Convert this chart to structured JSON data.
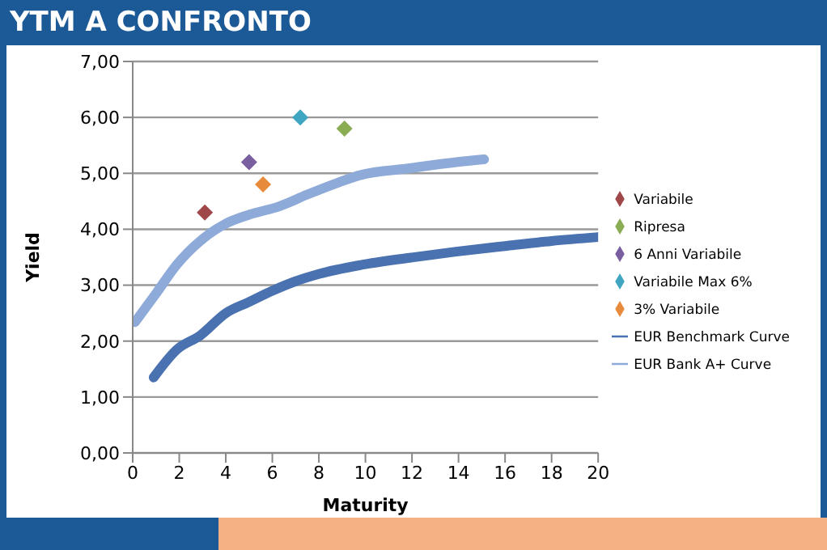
{
  "chart_data": {
    "type": "scatter",
    "title": "YTM A CONFRONTO",
    "xlabel": "Maturity",
    "ylabel": "Yield",
    "xlim": [
      0,
      20
    ],
    "xticks": [
      0,
      2,
      4,
      6,
      8,
      10,
      12,
      14,
      16,
      18,
      20
    ],
    "ylim": [
      0,
      7
    ],
    "yticks": [
      {
        "value": 0,
        "label": "0,00"
      },
      {
        "value": 1,
        "label": "1,00"
      },
      {
        "value": 2,
        "label": "2,00"
      },
      {
        "value": 3,
        "label": "3,00"
      },
      {
        "value": 4,
        "label": "4,00"
      },
      {
        "value": 5,
        "label": "5,00"
      },
      {
        "value": 6,
        "label": "6,00"
      },
      {
        "value": 7,
        "label": "7,00"
      }
    ],
    "grid": "y",
    "legend": "right",
    "marker": "diamond",
    "series": [
      {
        "name": "Variabile",
        "color": "#a0474a",
        "x": [
          3.1
        ],
        "values": [
          4.3
        ]
      },
      {
        "name": "Ripresa",
        "color": "#8aac52",
        "x": [
          9.1
        ],
        "values": [
          5.8
        ]
      },
      {
        "name": "6 Anni Variabile",
        "color": "#7a5fa0",
        "x": [
          5.0
        ],
        "values": [
          5.2
        ]
      },
      {
        "name": "Variabile Max 6%",
        "color": "#3fa5c0",
        "x": [
          7.2
        ],
        "values": [
          6.0
        ]
      },
      {
        "name": "3% Variabile",
        "color": "#e88a3c",
        "x": [
          5.6
        ],
        "values": [
          4.8
        ]
      },
      {
        "name": "EUR Benchmark Curve",
        "type": "line",
        "marker": "none",
        "color": "#4a72b0",
        "x": [
          0.9,
          1.9,
          2.9,
          4.0,
          5.0,
          6.0,
          7.0,
          8.0,
          9.8,
          11.9,
          13.9,
          16,
          18,
          20
        ],
        "values": [
          1.35,
          1.85,
          2.1,
          2.5,
          2.7,
          2.9,
          3.07,
          3.2,
          3.36,
          3.49,
          3.6,
          3.7,
          3.79,
          3.86
        ]
      },
      {
        "name": "EUR Bank A+ Curve",
        "type": "line",
        "marker": "none",
        "color": "#8eaad8",
        "x": [
          0.1,
          1.0,
          1.9,
          2.9,
          4.0,
          5.0,
          6.3,
          7.5,
          8.8,
          9.8,
          11.9,
          13.9,
          15.1
        ],
        "values": [
          2.34,
          2.85,
          3.37,
          3.79,
          4.1,
          4.26,
          4.41,
          4.62,
          4.83,
          4.97,
          5.09,
          5.2,
          5.25
        ]
      }
    ]
  }
}
